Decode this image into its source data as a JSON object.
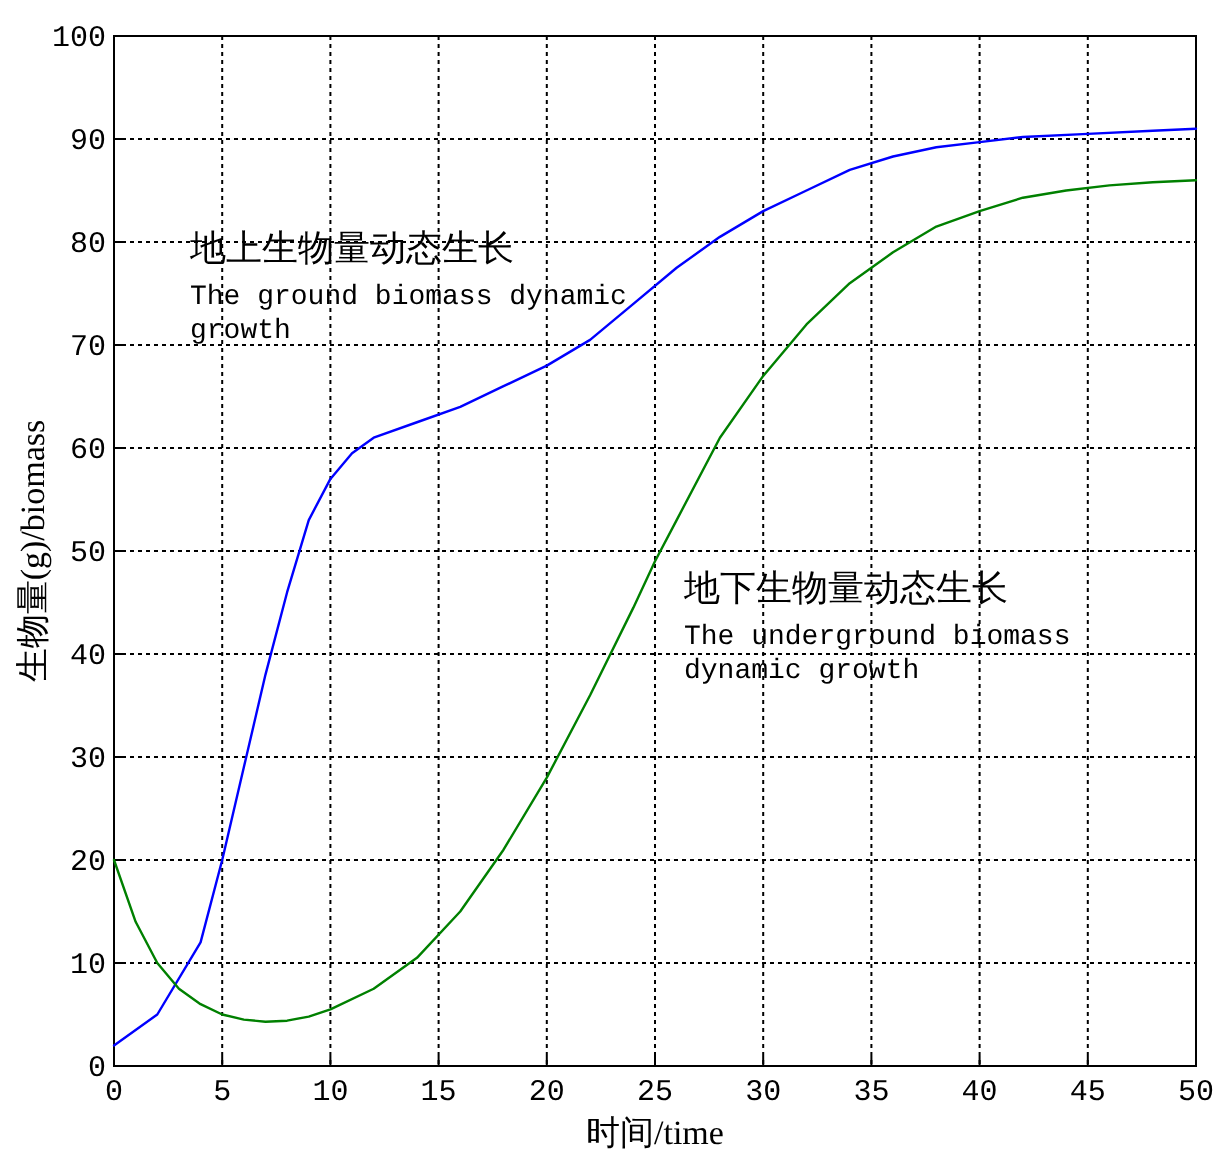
{
  "chart_data": {
    "type": "line",
    "xlabel": "时间/time",
    "ylabel": "生物量(g)/biomass",
    "xlim": [
      0,
      50
    ],
    "ylim": [
      0,
      100
    ],
    "xticks": [
      0,
      5,
      10,
      15,
      20,
      25,
      30,
      35,
      40,
      45,
      50
    ],
    "yticks": [
      0,
      10,
      20,
      30,
      40,
      50,
      60,
      70,
      80,
      90,
      100
    ],
    "grid": true,
    "marker": "none",
    "line_style": "solid",
    "series": [
      {
        "name": "地上生物量动态生长",
        "color": "#0000ff",
        "x": [
          0,
          2,
          4,
          5,
          6,
          7,
          8,
          9,
          10,
          11,
          12,
          14,
          16,
          18,
          20,
          22,
          24,
          26,
          28,
          30,
          32,
          34,
          36,
          38,
          40,
          42,
          45,
          48,
          50
        ],
        "values": [
          2,
          5,
          12,
          20,
          29,
          38,
          46,
          53,
          57,
          59.5,
          61,
          62.5,
          64,
          66,
          68,
          70.5,
          74,
          77.5,
          80.5,
          83,
          85,
          87,
          88.3,
          89.2,
          89.7,
          90.2,
          90.5,
          90.8,
          91
        ]
      },
      {
        "name": "地下生物量动态生长",
        "color": "#008000",
        "x": [
          0,
          1,
          2,
          3,
          4,
          5,
          6,
          7,
          8,
          9,
          10,
          12,
          14,
          16,
          18,
          20,
          22,
          24,
          25,
          26,
          28,
          30,
          32,
          34,
          36,
          38,
          40,
          42,
          44,
          46,
          48,
          50
        ],
        "values": [
          20,
          14,
          10,
          7.5,
          6,
          5,
          4.5,
          4.3,
          4.4,
          4.8,
          5.5,
          7.5,
          10.5,
          15,
          21,
          28,
          36,
          44.5,
          49,
          53,
          61,
          67,
          72,
          76,
          79,
          81.5,
          83,
          84.3,
          85,
          85.5,
          85.8,
          86
        ]
      }
    ],
    "annotations": [
      "The ground biomass dynamic growth",
      "The underground biomass dynamic growth"
    ]
  }
}
